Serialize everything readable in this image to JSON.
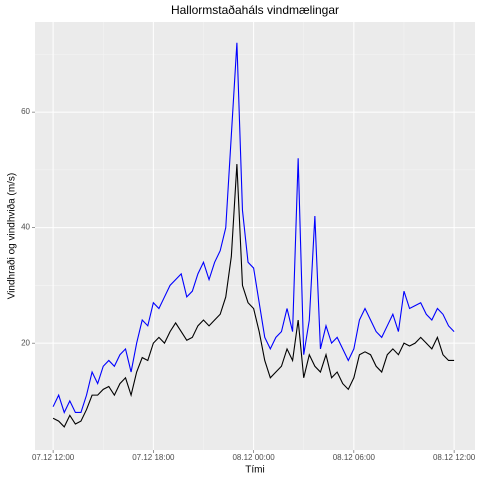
{
  "chart_data": {
    "type": "line",
    "title": "Hallormstaðaháls vindmælingar",
    "x_label": "Tími",
    "y_label": "Vindhraði og vindhviða (m/s)",
    "x": [
      "07.12 12:00",
      "07.12 12:20",
      "07.12 12:40",
      "07.12 13:00",
      "07.12 13:20",
      "07.12 13:40",
      "07.12 14:00",
      "07.12 14:20",
      "07.12 14:40",
      "07.12 15:00",
      "07.12 15:20",
      "07.12 15:40",
      "07.12 16:00",
      "07.12 16:20",
      "07.12 16:40",
      "07.12 17:00",
      "07.12 17:20",
      "07.12 17:40",
      "07.12 18:00",
      "07.12 18:20",
      "07.12 18:40",
      "07.12 19:00",
      "07.12 19:20",
      "07.12 19:40",
      "07.12 20:00",
      "07.12 20:20",
      "07.12 20:40",
      "07.12 21:00",
      "07.12 21:20",
      "07.12 21:40",
      "07.12 22:00",
      "07.12 22:20",
      "07.12 22:40",
      "07.12 23:00",
      "07.12 23:20",
      "07.12 23:40",
      "08.12 00:00",
      "08.12 00:20",
      "08.12 00:40",
      "08.12 01:00",
      "08.12 01:20",
      "08.12 01:40",
      "08.12 02:00",
      "08.12 02:20",
      "08.12 02:40",
      "08.12 03:00",
      "08.12 03:20",
      "08.12 03:40",
      "08.12 04:00",
      "08.12 04:20",
      "08.12 04:40",
      "08.12 05:00",
      "08.12 05:20",
      "08.12 05:40",
      "08.12 06:00",
      "08.12 06:20",
      "08.12 06:40",
      "08.12 07:00",
      "08.12 07:20",
      "08.12 07:40",
      "08.12 08:00",
      "08.12 08:20",
      "08.12 08:40",
      "08.12 09:00",
      "08.12 09:20",
      "08.12 09:40",
      "08.12 10:00",
      "08.12 10:20",
      "08.12 10:40",
      "08.12 11:00",
      "08.12 11:20",
      "08.12 11:40",
      "08.12 12:00"
    ],
    "series": [
      {
        "color": "#000000",
        "values": [
          7,
          6.5,
          5.5,
          7.5,
          6,
          6.5,
          8.5,
          11,
          11,
          12,
          12.5,
          11,
          13,
          14,
          11,
          15,
          17.5,
          17,
          20,
          21,
          20,
          22,
          23.5,
          22,
          20.5,
          21,
          23,
          24,
          23,
          24,
          25,
          28,
          35,
          51,
          30,
          27,
          26,
          22,
          17,
          14,
          15,
          16,
          19,
          17,
          24,
          14,
          18,
          16,
          15,
          18,
          14,
          15,
          13,
          12,
          14,
          18,
          18.5,
          18,
          16,
          15,
          18,
          19,
          18,
          20,
          19.5,
          20,
          21,
          20,
          19,
          21,
          18,
          17,
          17
        ]
      },
      {
        "color": "#0000ff",
        "values": [
          9,
          11,
          8,
          10,
          8,
          8,
          11,
          15,
          13,
          16,
          17,
          16,
          18,
          19,
          15,
          20,
          24,
          23,
          27,
          26,
          28,
          30,
          31,
          32,
          28,
          29,
          32,
          34,
          31,
          34,
          36,
          40,
          56,
          72,
          43,
          34,
          33,
          27,
          21,
          19,
          21,
          22,
          26,
          22,
          52,
          18,
          24,
          42,
          19,
          23,
          20,
          21,
          19,
          17,
          19,
          24,
          26,
          24,
          22,
          21,
          23,
          25,
          22,
          29,
          26,
          26.5,
          27,
          25,
          24,
          26,
          25,
          23,
          22
        ]
      }
    ],
    "xlim": [
      "07.12 10:55",
      "08.12 13:15"
    ],
    "xticks": [
      "07.12 12:00",
      "07.12 18:00",
      "08.12 00:00",
      "08.12 06:00",
      "08.12 12:00"
    ],
    "ylim": [
      1.5,
      75.6
    ],
    "yticks": [
      20,
      40,
      60
    ],
    "grid": true
  }
}
